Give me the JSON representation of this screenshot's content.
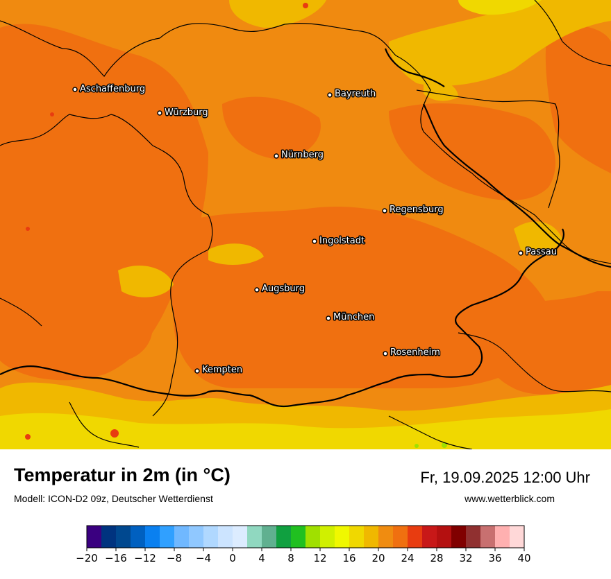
{
  "map": {
    "cities": [
      {
        "name": "Aschaffenburg"
      },
      {
        "name": "Würzburg"
      },
      {
        "name": "Bayreuth"
      },
      {
        "name": "Nürnberg"
      },
      {
        "name": "Regensburg"
      },
      {
        "name": "Ingolstadt"
      },
      {
        "name": "Passau"
      },
      {
        "name": "Augsburg"
      },
      {
        "name": "München"
      },
      {
        "name": "Rosenheim"
      },
      {
        "name": "Kempten"
      }
    ]
  },
  "footer": {
    "title": "Temperatur in 2m (in °C)",
    "model": "Modell: ICON-D2 09z, Deutscher Wetterdienst",
    "valid_time": "Fr, 19.09.2025 12:00 Uhr",
    "website": "www.wetterblick.com"
  },
  "legend": {
    "colors": [
      "#3a0080",
      "#00337f",
      "#00488f",
      "#0060c0",
      "#0a80f0",
      "#30a0ff",
      "#70b8ff",
      "#90c8ff",
      "#b0d8ff",
      "#cce4ff",
      "#dcecff",
      "#90d8c0",
      "#60b090",
      "#10a040",
      "#20c020",
      "#a0e000",
      "#d0f000",
      "#f0f800",
      "#f0d800",
      "#f0b800",
      "#f08c10",
      "#f07010",
      "#e83c10",
      "#c81818",
      "#b41010",
      "#800000",
      "#903030",
      "#c87070",
      "#ffb0b0",
      "#ffd8d8"
    ],
    "tick_labels": [
      "−20",
      "−16",
      "−12",
      "−8",
      "−4",
      "0",
      "4",
      "8",
      "12",
      "16",
      "20",
      "24",
      "28",
      "32",
      "36",
      "40"
    ]
  }
}
